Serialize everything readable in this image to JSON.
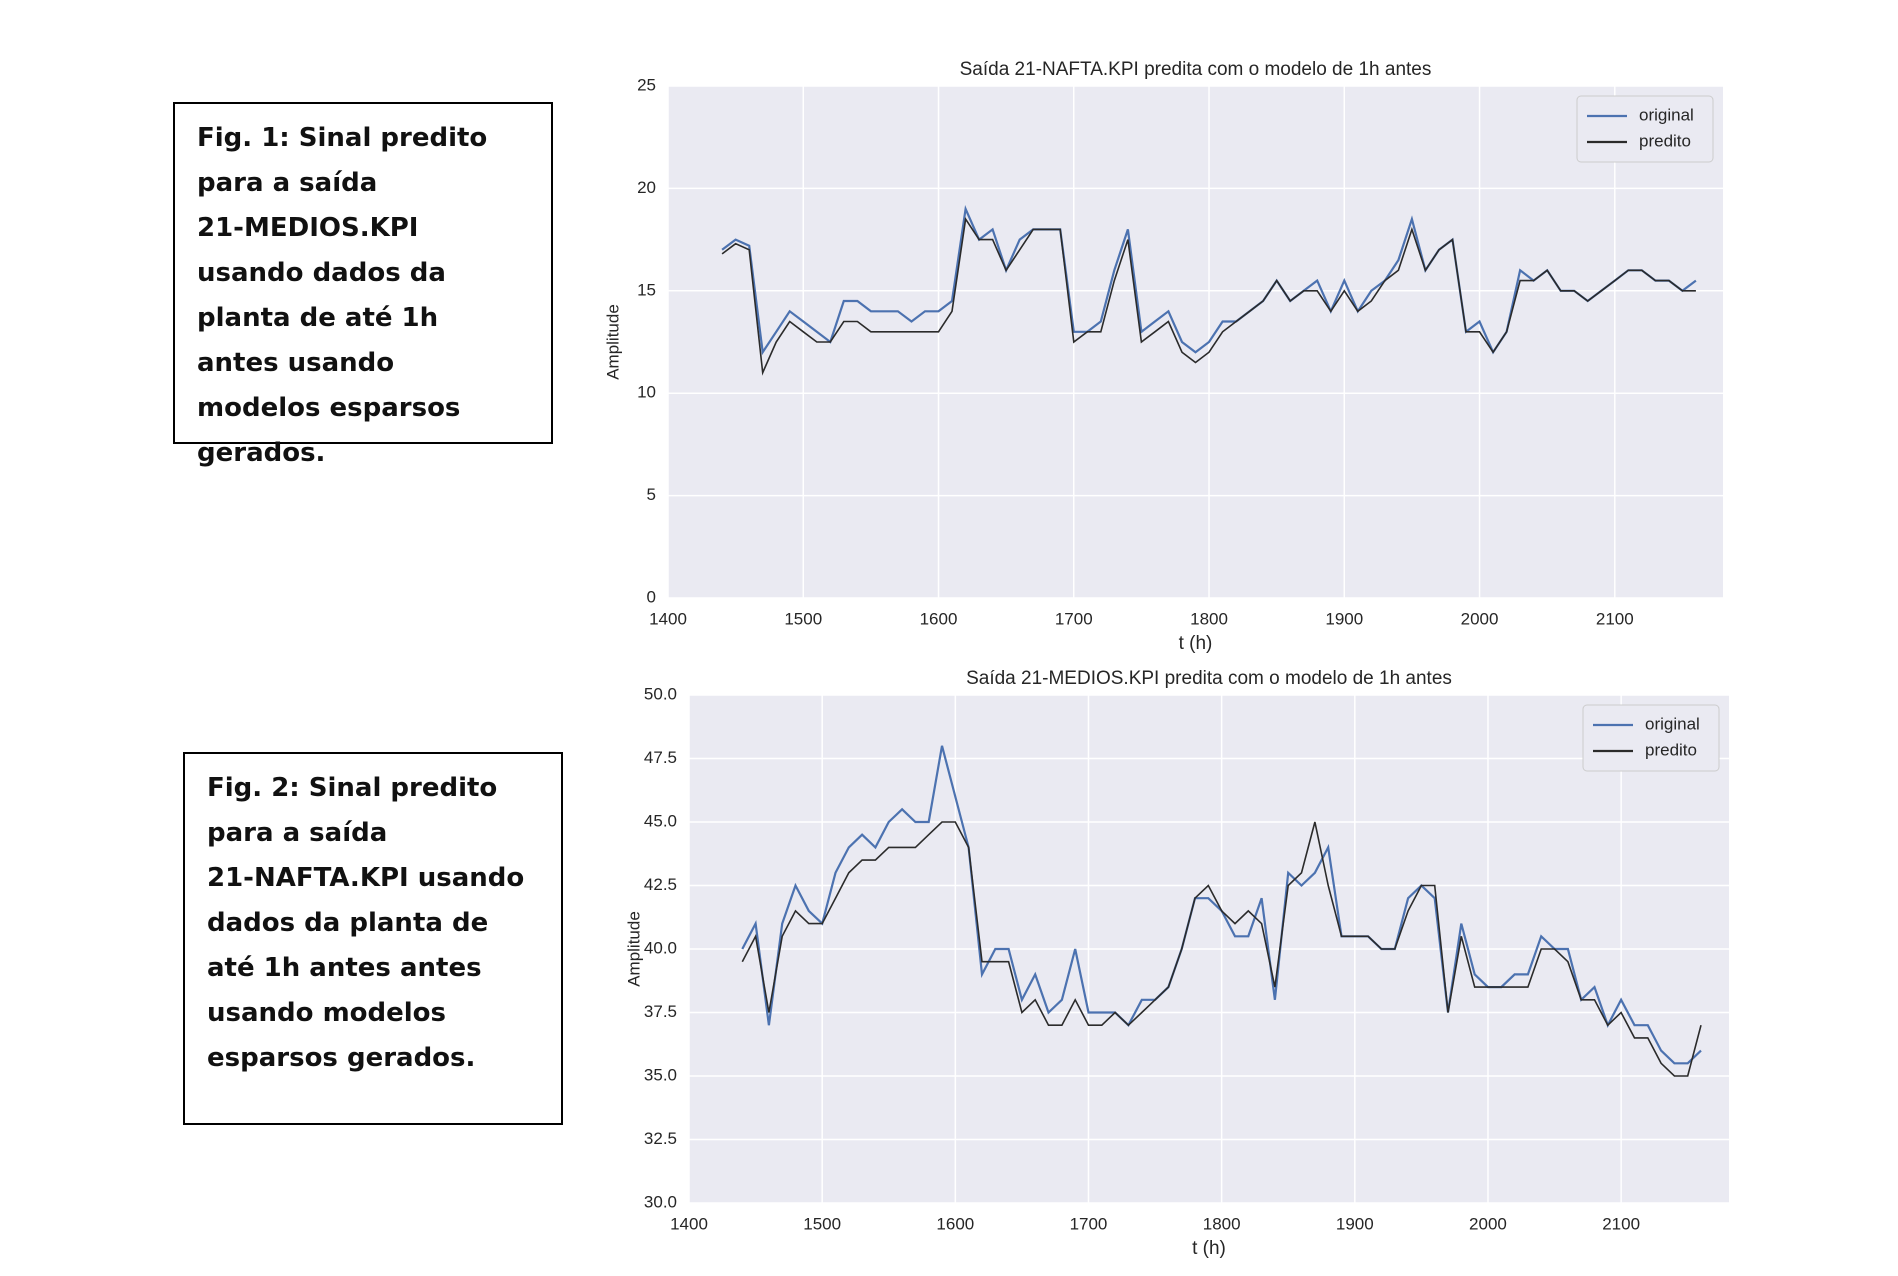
{
  "captions": [
    {
      "lines": [
        "Fig. 1: Sinal predito",
        "para a saída",
        "21-MEDIOS.KPI",
        "usando dados da",
        "planta de até 1h",
        "antes usando",
        "modelos esparsos",
        "gerados."
      ]
    },
    {
      "lines": [
        "Fig. 2: Sinal predito",
        "para a saída",
        "21-NAFTA.KPI usando",
        "dados da planta de",
        "até 1h antes antes",
        "usando modelos",
        "esparsos gerados."
      ]
    }
  ],
  "chart_data": [
    {
      "type": "line",
      "title": "Saída 21-NAFTA.KPI predita com o modelo de 1h antes",
      "x_label": "t (h)",
      "y_label": "Amplitude",
      "x": [
        1440,
        1450,
        1460,
        1470,
        1480,
        1490,
        1500,
        1510,
        1520,
        1530,
        1540,
        1550,
        1560,
        1570,
        1580,
        1590,
        1600,
        1610,
        1620,
        1630,
        1640,
        1650,
        1660,
        1670,
        1680,
        1690,
        1700,
        1710,
        1720,
        1730,
        1740,
        1750,
        1760,
        1770,
        1780,
        1790,
        1800,
        1810,
        1820,
        1830,
        1840,
        1850,
        1860,
        1870,
        1880,
        1890,
        1900,
        1910,
        1920,
        1930,
        1940,
        1950,
        1960,
        1970,
        1980,
        1990,
        2000,
        2010,
        2020,
        2030,
        2040,
        2050,
        2060,
        2070,
        2080,
        2090,
        2100,
        2110,
        2120,
        2130,
        2140,
        2150,
        2160
      ],
      "series": [
        {
          "name": "original",
          "color": "#4c72b0",
          "values": [
            17,
            17.5,
            17.2,
            12,
            13,
            14,
            13.5,
            13,
            12.5,
            14.5,
            14.5,
            14,
            14,
            14,
            13.5,
            14,
            14,
            14.5,
            19,
            17.5,
            18,
            16,
            17.5,
            18,
            18,
            18,
            13,
            13,
            13.5,
            16,
            18,
            13,
            13.5,
            14,
            12.5,
            12,
            12.5,
            13.5,
            13.5,
            14,
            14.5,
            15.5,
            14.5,
            15,
            15.5,
            14,
            15.5,
            14,
            15,
            15.5,
            16.5,
            18.5,
            16,
            17,
            17.5,
            13,
            13.5,
            12,
            13,
            16,
            15.5,
            16,
            15,
            15,
            14.5,
            15,
            15.5,
            16,
            16,
            15.5,
            15.5,
            15,
            15.5
          ]
        },
        {
          "name": "predito",
          "color": "#2b2b2b",
          "values": [
            16.8,
            17.3,
            17,
            11,
            12.5,
            13.5,
            13,
            12.5,
            12.5,
            13.5,
            13.5,
            13,
            13,
            13,
            13,
            13,
            13,
            14,
            18.5,
            17.5,
            17.5,
            16,
            17,
            18,
            18,
            18,
            12.5,
            13,
            13,
            15.5,
            17.5,
            12.5,
            13,
            13.5,
            12,
            11.5,
            12,
            13,
            13.5,
            14,
            14.5,
            15.5,
            14.5,
            15,
            15,
            14,
            15,
            14,
            14.5,
            15.5,
            16,
            18,
            16,
            17,
            17.5,
            13,
            13,
            12,
            13,
            15.5,
            15.5,
            16,
            15,
            15,
            14.5,
            15,
            15.5,
            16,
            16,
            15.5,
            15.5,
            15,
            15
          ]
        }
      ],
      "xlim": [
        1400,
        2180
      ],
      "xticks": [
        1400,
        1500,
        1600,
        1700,
        1800,
        1900,
        2000,
        2100
      ],
      "ylim": [
        0,
        25
      ],
      "yticks": [
        0,
        5,
        10,
        15,
        20,
        25
      ],
      "grid": true,
      "legend": "upper-right"
    },
    {
      "type": "line",
      "title": "Saída 21-MEDIOS.KPI predita com o modelo de 1h antes",
      "x_label": "t (h)",
      "y_label": "Amplitude",
      "x": [
        1440,
        1450,
        1460,
        1470,
        1480,
        1490,
        1500,
        1510,
        1520,
        1530,
        1540,
        1550,
        1560,
        1570,
        1580,
        1590,
        1600,
        1610,
        1620,
        1630,
        1640,
        1650,
        1660,
        1670,
        1680,
        1690,
        1700,
        1710,
        1720,
        1730,
        1740,
        1750,
        1760,
        1770,
        1780,
        1790,
        1800,
        1810,
        1820,
        1830,
        1840,
        1850,
        1860,
        1870,
        1880,
        1890,
        1900,
        1910,
        1920,
        1930,
        1940,
        1950,
        1960,
        1970,
        1980,
        1990,
        2000,
        2010,
        2020,
        2030,
        2040,
        2050,
        2060,
        2070,
        2080,
        2090,
        2100,
        2110,
        2120,
        2130,
        2140,
        2150,
        2160
      ],
      "series": [
        {
          "name": "original",
          "color": "#4c72b0",
          "values": [
            40,
            41,
            37,
            41,
            42.5,
            41.5,
            41,
            43,
            44,
            44.5,
            44,
            45,
            45.5,
            45,
            45,
            48,
            46,
            44,
            39,
            40,
            40,
            38,
            39,
            37.5,
            38,
            40,
            37.5,
            37.5,
            37.5,
            37,
            38,
            38,
            38.5,
            40,
            42,
            42,
            41.5,
            40.5,
            40.5,
            42,
            38,
            43,
            42.5,
            43,
            44,
            40.5,
            40.5,
            40.5,
            40,
            40,
            42,
            42.5,
            42,
            37.5,
            41,
            39,
            38.5,
            38.5,
            39,
            39,
            40.5,
            40,
            40,
            38,
            38.5,
            37,
            38,
            37,
            37,
            36,
            35.5,
            35.5,
            36
          ]
        },
        {
          "name": "predito",
          "color": "#2b2b2b",
          "values": [
            39.5,
            40.5,
            37.5,
            40.5,
            41.5,
            41,
            41,
            42,
            43,
            43.5,
            43.5,
            44,
            44,
            44,
            44.5,
            45,
            45,
            44,
            39.5,
            39.5,
            39.5,
            37.5,
            38,
            37,
            37,
            38,
            37,
            37,
            37.5,
            37,
            37.5,
            38,
            38.5,
            40,
            42,
            42.5,
            41.5,
            41,
            41.5,
            41,
            38.5,
            42.5,
            43,
            45,
            42.5,
            40.5,
            40.5,
            40.5,
            40,
            40,
            41.5,
            42.5,
            42.5,
            37.5,
            40.5,
            38.5,
            38.5,
            38.5,
            38.5,
            38.5,
            40,
            40,
            39.5,
            38,
            38,
            37,
            37.5,
            36.5,
            36.5,
            35.5,
            35,
            35,
            37
          ]
        }
      ],
      "xlim": [
        1400,
        2181
      ],
      "xticks": [
        1400,
        1500,
        1600,
        1700,
        1800,
        1900,
        2000,
        2100
      ],
      "ylim": [
        30,
        50
      ],
      "yticks": [
        {
          "value": 30,
          "label": "30.0"
        },
        32.5,
        {
          "value": 35,
          "label": "35.0"
        },
        37.5,
        {
          "value": 40,
          "label": "40.0"
        },
        42.5,
        {
          "value": 45,
          "label": "45.0"
        },
        47.5,
        {
          "value": 50,
          "label": "50.0"
        }
      ],
      "grid": true,
      "legend": "upper-right"
    }
  ]
}
